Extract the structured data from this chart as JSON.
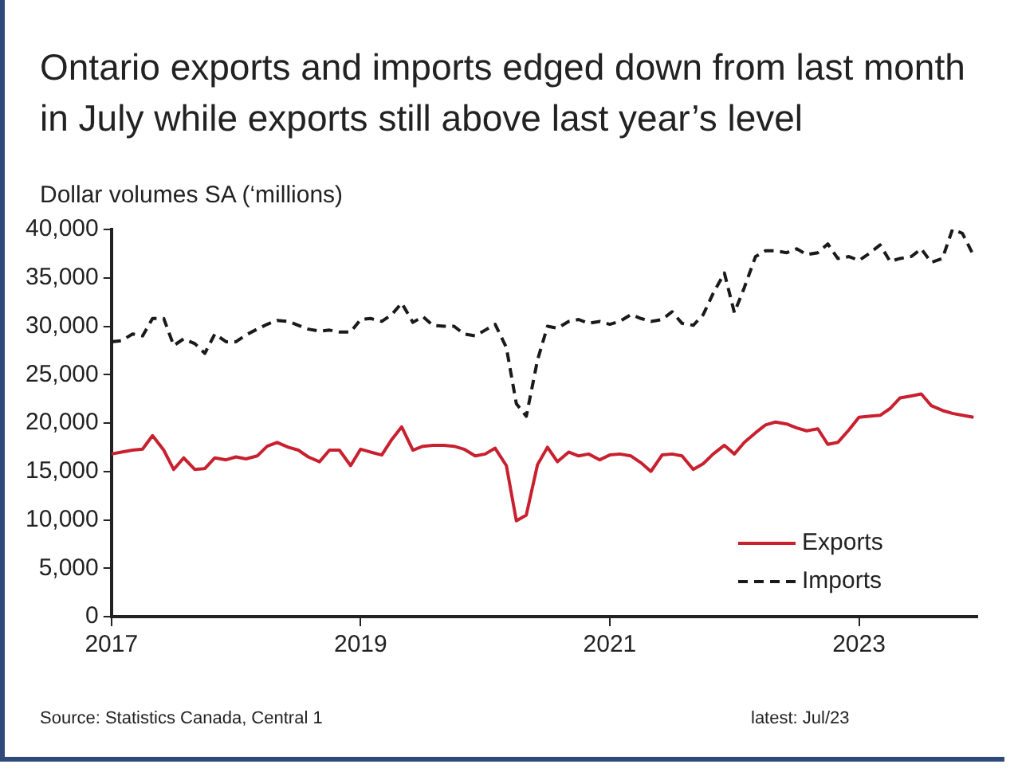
{
  "chart_data": {
    "type": "line",
    "title": "Ontario exports and imports edged down from last month in July while exports still above last year’s level",
    "ylabel": "Dollar volumes SA (‘millions)",
    "annotations": [
      "Source: Statistics Canada, Central 1",
      "latest: Jul/23"
    ],
    "x": [
      2017.0,
      2017.08,
      2017.17,
      2017.25,
      2017.33,
      2017.42,
      2017.5,
      2017.58,
      2017.67,
      2017.75,
      2017.83,
      2017.92,
      2018.0,
      2018.08,
      2018.17,
      2018.25,
      2018.33,
      2018.42,
      2018.5,
      2018.58,
      2018.67,
      2018.75,
      2018.83,
      2018.92,
      2019.0,
      2019.08,
      2019.17,
      2019.25,
      2019.33,
      2019.42,
      2019.5,
      2019.58,
      2019.67,
      2019.75,
      2019.83,
      2019.92,
      2020.0,
      2020.08,
      2020.17,
      2020.25,
      2020.33,
      2020.42,
      2020.5,
      2020.58,
      2020.67,
      2020.75,
      2020.83,
      2020.92,
      2021.0,
      2021.08,
      2021.17,
      2021.25,
      2021.33,
      2021.42,
      2021.5,
      2021.58,
      2021.67,
      2021.75,
      2021.83,
      2021.92,
      2022.0,
      2022.08,
      2022.17,
      2022.25,
      2022.33,
      2022.42,
      2022.5,
      2022.58,
      2022.67,
      2022.75,
      2022.83,
      2022.92,
      2023.0,
      2023.08,
      2023.17,
      2023.25,
      2023.33,
      2023.42,
      2023.5,
      2023.58,
      2023.67,
      2023.75,
      2023.83,
      2023.92
    ],
    "series": [
      {
        "name": "Exports",
        "color": "#c8202f",
        "line_style": "solid",
        "values": [
          16800,
          17000,
          17200,
          17300,
          18700,
          17200,
          15200,
          16400,
          15200,
          15300,
          16400,
          16200,
          16500,
          16300,
          16600,
          17600,
          18000,
          17500,
          17200,
          16500,
          16000,
          17200,
          17200,
          15600,
          17300,
          17000,
          16700,
          18300,
          19600,
          17200,
          17600,
          17700,
          17700,
          17600,
          17300,
          16600,
          16800,
          17400,
          15600,
          9900,
          10500,
          15700,
          17500,
          16000,
          17000,
          16600,
          16800,
          16200,
          16700,
          16800,
          16600,
          15900,
          15000,
          16700,
          16800,
          16600,
          15200,
          15800,
          16800,
          17700,
          16800,
          18000,
          19000,
          19800,
          20100,
          19900,
          19500,
          19200,
          19400,
          17800,
          18000,
          19300,
          20600,
          20700,
          20800,
          21500,
          22600,
          22800,
          23000,
          21800,
          21300,
          21000,
          20800,
          20600
        ]
      },
      {
        "name": "Imports",
        "color": "#1a1a1a",
        "line_style": "dashed",
        "values": [
          28400,
          28500,
          29200,
          29000,
          30800,
          30800,
          28000,
          28700,
          28200,
          27200,
          29200,
          28400,
          28400,
          29100,
          29700,
          30200,
          30600,
          30500,
          30100,
          29700,
          29500,
          29600,
          29400,
          29400,
          30700,
          30800,
          30500,
          31200,
          32400,
          30400,
          31000,
          30100,
          30000,
          30000,
          29200,
          29000,
          29600,
          30200,
          27800,
          22000,
          20700,
          26500,
          30000,
          29800,
          30500,
          30700,
          30300,
          30500,
          30200,
          30500,
          31200,
          30800,
          30500,
          30700,
          31500,
          30300,
          30100,
          31200,
          33400,
          35500,
          31400,
          34000,
          37200,
          37800,
          37800,
          37600,
          38000,
          37400,
          37600,
          38500,
          37000,
          37200,
          36800,
          37500,
          38400,
          36700,
          37000,
          37200,
          38000,
          36600,
          37000,
          40000,
          39600,
          37300
        ]
      }
    ],
    "xlim": [
      2017,
      2023.95
    ],
    "xticks": [
      2017,
      2019,
      2021,
      2023
    ],
    "ylim": [
      0,
      40000
    ],
    "yticks": [
      {
        "value": 0,
        "label": "0"
      },
      {
        "value": 5000,
        "label": "5,000"
      },
      {
        "value": 10000,
        "label": "10,000"
      },
      {
        "value": 15000,
        "label": "15,000"
      },
      {
        "value": 20000,
        "label": "20,000"
      },
      {
        "value": 25000,
        "label": "25,000"
      },
      {
        "value": 30000,
        "label": "30,000"
      },
      {
        "value": 35000,
        "label": "35,000"
      },
      {
        "value": 40000,
        "label": "40,000"
      }
    ],
    "grid": false,
    "legend": "bottom right",
    "marker": "none"
  }
}
